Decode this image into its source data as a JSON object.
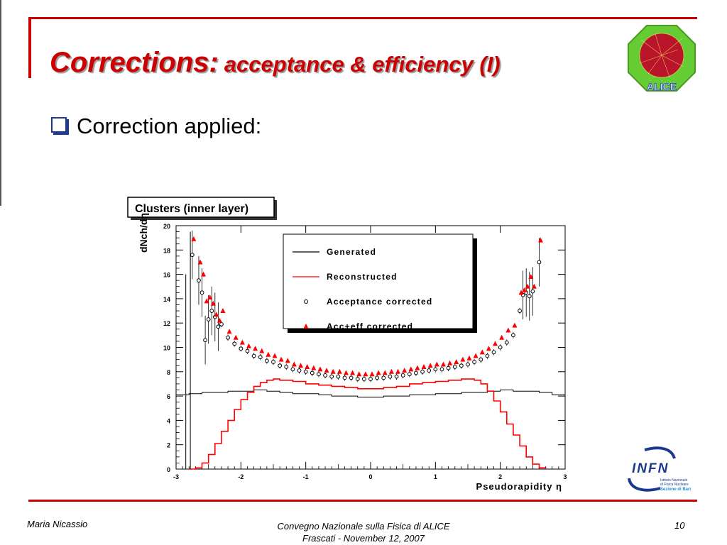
{
  "slide": {
    "title_main": "Corrections:",
    "title_sub": "acceptance & efficiency (I)",
    "bullet": "Correction applied:",
    "footer_left": "Maria Nicassio",
    "footer_center_1": "Convegno Nazionale sulla Fisica di ALICE",
    "footer_center_2": "Frascati -  November 12, 2007",
    "page_number": "10",
    "logo_alice_text": "ALICE",
    "logo_infn_text": "INFN",
    "logo_infn_sub1": "Istituto Nazionale",
    "logo_infn_sub2": "di Fisica Nucleare",
    "logo_infn_sub3": "Sezione di Bari",
    "accent_color": "#cc0000"
  },
  "chart_data": {
    "type": "scatter",
    "title": "Clusters (inner layer)",
    "xlabel": "Pseudorapidity η",
    "ylabel": "dNch/dη",
    "xlim": [
      -3,
      3
    ],
    "ylim": [
      0,
      20
    ],
    "xticks": [
      "-3",
      "-2",
      "-1",
      "0",
      "1",
      "2",
      "3"
    ],
    "yticks": [
      "0",
      "2",
      "4",
      "6",
      "8",
      "10",
      "12",
      "14",
      "16",
      "18",
      "20"
    ],
    "grid": false,
    "legend_position": "top-right",
    "legend": [
      {
        "label": "Generated",
        "style": "line",
        "color": "#000000"
      },
      {
        "label": "Reconstructed",
        "style": "line",
        "color": "#ff0000"
      },
      {
        "label": "Acceptance corrected",
        "style": "open-circle",
        "color": "#000000"
      },
      {
        "label": "Acc+eff corrected",
        "style": "triangle",
        "color": "#ff0000"
      }
    ],
    "series": [
      {
        "name": "Generated",
        "style": "histogram",
        "color": "#000000",
        "x": [
          -3.0,
          -2.8,
          -2.6,
          -2.4,
          -2.2,
          -2.0,
          -1.8,
          -1.6,
          -1.4,
          -1.2,
          -1.0,
          -0.8,
          -0.6,
          -0.4,
          -0.2,
          0.0,
          0.2,
          0.4,
          0.6,
          0.8,
          1.0,
          1.2,
          1.4,
          1.6,
          1.8,
          2.0,
          2.2,
          2.4,
          2.6,
          2.8,
          3.0
        ],
        "y": [
          6.1,
          6.2,
          6.3,
          6.3,
          6.4,
          6.4,
          6.5,
          6.4,
          6.3,
          6.2,
          6.2,
          6.1,
          6.0,
          6.0,
          5.9,
          5.9,
          6.0,
          6.0,
          6.1,
          6.1,
          6.2,
          6.2,
          6.3,
          6.3,
          6.4,
          6.5,
          6.4,
          6.4,
          6.3,
          6.1,
          6.0
        ]
      },
      {
        "name": "Reconstructed",
        "style": "histogram",
        "color": "#ff0000",
        "x": [
          -2.8,
          -2.7,
          -2.6,
          -2.5,
          -2.4,
          -2.3,
          -2.2,
          -2.1,
          -2.0,
          -1.9,
          -1.8,
          -1.7,
          -1.6,
          -1.5,
          -1.4,
          -1.2,
          -1.0,
          -0.8,
          -0.6,
          -0.4,
          -0.2,
          0.0,
          0.2,
          0.4,
          0.6,
          0.8,
          1.0,
          1.2,
          1.4,
          1.6,
          1.7,
          1.8,
          1.9,
          2.0,
          2.1,
          2.2,
          2.3,
          2.4,
          2.5,
          2.6,
          2.7
        ],
        "y": [
          0.0,
          0.1,
          0.5,
          1.2,
          2.1,
          3.1,
          4.0,
          4.9,
          5.7,
          6.3,
          6.8,
          7.1,
          7.3,
          7.4,
          7.3,
          7.2,
          7.0,
          6.9,
          6.8,
          6.7,
          6.6,
          6.6,
          6.7,
          6.8,
          7.0,
          7.1,
          7.2,
          7.3,
          7.4,
          7.3,
          7.0,
          6.4,
          5.6,
          4.7,
          3.7,
          2.8,
          1.9,
          1.0,
          0.4,
          0.1,
          0.0
        ]
      },
      {
        "name": "Acceptance corrected",
        "style": "open-circle",
        "color": "#000000",
        "x": [
          -2.75,
          -2.65,
          -2.6,
          -2.55,
          -2.5,
          -2.45,
          -2.4,
          -2.35,
          -2.3,
          -2.2,
          -2.1,
          -2.0,
          -1.9,
          -1.8,
          -1.7,
          -1.6,
          -1.5,
          -1.4,
          -1.3,
          -1.2,
          -1.1,
          -1.0,
          -0.9,
          -0.8,
          -0.7,
          -0.6,
          -0.5,
          -0.4,
          -0.3,
          -0.2,
          -0.1,
          0.0,
          0.1,
          0.2,
          0.3,
          0.4,
          0.5,
          0.6,
          0.7,
          0.8,
          0.9,
          1.0,
          1.1,
          1.2,
          1.3,
          1.4,
          1.5,
          1.6,
          1.7,
          1.8,
          1.9,
          2.0,
          2.1,
          2.2,
          2.3,
          2.35,
          2.4,
          2.45,
          2.5,
          2.6
        ],
        "y": [
          17.6,
          15.5,
          14.5,
          10.6,
          12.3,
          13.0,
          12.5,
          11.7,
          11.9,
          10.8,
          10.3,
          9.9,
          9.7,
          9.3,
          9.2,
          8.9,
          8.8,
          8.5,
          8.4,
          8.2,
          8.1,
          8.0,
          7.9,
          7.8,
          7.7,
          7.6,
          7.6,
          7.5,
          7.5,
          7.4,
          7.4,
          7.4,
          7.5,
          7.5,
          7.6,
          7.6,
          7.7,
          7.8,
          7.9,
          8.0,
          8.1,
          8.2,
          8.2,
          8.3,
          8.4,
          8.5,
          8.6,
          8.8,
          9.0,
          9.3,
          9.6,
          10.0,
          10.4,
          11.0,
          13.0,
          14.3,
          14.5,
          14.2,
          14.6,
          17.0
        ]
      },
      {
        "name": "Acc+eff corrected",
        "style": "triangle",
        "color": "#ff0000",
        "x": [
          -2.75,
          -2.65,
          -2.6,
          -2.55,
          -2.5,
          -2.45,
          -2.4,
          -2.35,
          -2.3,
          -2.2,
          -2.1,
          -2.0,
          -1.9,
          -1.8,
          -1.7,
          -1.6,
          -1.5,
          -1.4,
          -1.3,
          -1.2,
          -1.1,
          -1.0,
          -0.9,
          -0.8,
          -0.7,
          -0.6,
          -0.5,
          -0.4,
          -0.3,
          -0.2,
          -0.1,
          0.0,
          0.1,
          0.2,
          0.3,
          0.4,
          0.5,
          0.6,
          0.7,
          0.8,
          0.9,
          1.0,
          1.1,
          1.2,
          1.3,
          1.4,
          1.5,
          1.6,
          1.7,
          1.8,
          1.9,
          2.0,
          2.1,
          2.2,
          2.3,
          2.35,
          2.4,
          2.45,
          2.5,
          2.6
        ],
        "y": [
          18.9,
          17.0,
          16.0,
          13.8,
          14.1,
          13.6,
          12.7,
          12.2,
          13.0,
          11.3,
          10.8,
          10.4,
          10.1,
          9.9,
          9.7,
          9.4,
          9.3,
          9.0,
          8.9,
          8.6,
          8.5,
          8.4,
          8.3,
          8.2,
          8.1,
          8.0,
          8.0,
          7.9,
          7.9,
          7.8,
          7.8,
          7.8,
          7.9,
          7.9,
          8.0,
          8.0,
          8.1,
          8.2,
          8.3,
          8.4,
          8.5,
          8.6,
          8.6,
          8.7,
          8.8,
          9.0,
          9.1,
          9.3,
          9.6,
          9.9,
          10.3,
          10.8,
          11.4,
          11.8,
          14.5,
          14.7,
          15.0,
          15.8,
          15.0,
          18.8
        ]
      }
    ]
  }
}
